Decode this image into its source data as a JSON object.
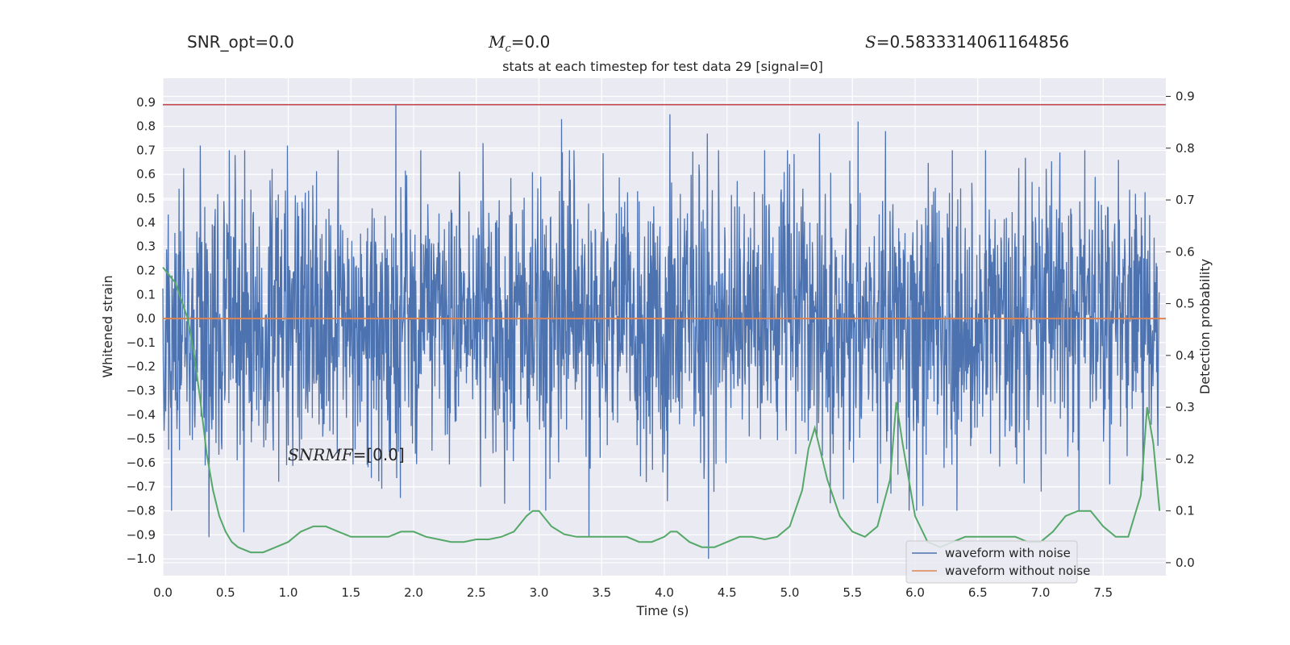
{
  "header": {
    "snr_opt": "SNR_opt=0.0",
    "mc_symbol": "M",
    "mc_sub": "c",
    "mc_value": "=0.0",
    "s_symbol": "S",
    "s_value": "=0.5833314061164856"
  },
  "annotation": {
    "snr_mf_symbol": "SNR",
    "snr_mf_sub": "MF",
    "snr_mf_value": "=[0.0]"
  },
  "colors": {
    "axes_bg": "#eaeaf2",
    "grid": "#ffffff",
    "noise_series": "#4c72b0",
    "clean_series": "#dd8452",
    "probability_series": "#55a868",
    "threshold_line": "#c44e52"
  },
  "chart_data": {
    "type": "line",
    "title": "stats at each timestep for test data 29 [signal=0]",
    "xlabel": "Time (s)",
    "ylabel": "Whitened strain",
    "y2label": "Detection probability",
    "xlim": [
      0.0,
      8.0
    ],
    "ylim": [
      -1.07,
      1.0
    ],
    "y2lim": [
      -0.025,
      0.935
    ],
    "xticks": [
      "0.0",
      "0.5",
      "1.0",
      "1.5",
      "2.0",
      "2.5",
      "3.0",
      "3.5",
      "4.0",
      "4.5",
      "5.0",
      "5.5",
      "6.0",
      "6.5",
      "7.0",
      "7.5"
    ],
    "yticks": [
      "0.9",
      "0.8",
      "0.7",
      "0.6",
      "0.5",
      "0.4",
      "0.3",
      "0.2",
      "0.1",
      "0.0",
      "−0.1",
      "−0.2",
      "−0.3",
      "−0.4",
      "−0.5",
      "−0.6",
      "−0.7",
      "−0.8",
      "−0.9",
      "−1.0"
    ],
    "y2ticks": [
      "0.9",
      "0.8",
      "0.7",
      "0.6",
      "0.5",
      "0.4",
      "0.3",
      "0.2",
      "0.1",
      "0.0"
    ],
    "grid": true,
    "legend": {
      "position": "lower-right",
      "entries": [
        "waveform with noise",
        "waveform without noise"
      ]
    },
    "series": [
      {
        "name": "waveform with noise",
        "axis": "left",
        "note": "dense noise trace sampled across 0–8 s",
        "amplitude_range": [
          -1.0,
          0.89
        ],
        "peaks_high": [
          [
            0.13,
            0.54
          ],
          [
            0.3,
            0.72
          ],
          [
            0.58,
            0.68
          ],
          [
            1.0,
            0.72
          ],
          [
            1.87,
            0.89
          ],
          [
            2.57,
            0.73
          ],
          [
            3.2,
            0.83
          ],
          [
            4.07,
            0.85
          ],
          [
            4.37,
            0.77
          ],
          [
            5.27,
            0.77
          ],
          [
            5.58,
            0.82
          ],
          [
            5.8,
            0.78
          ],
          [
            7.67,
            0.66
          ]
        ],
        "peaks_low": [
          [
            0.37,
            -0.91
          ],
          [
            0.65,
            -0.89
          ],
          [
            1.0,
            -0.72
          ],
          [
            2.55,
            -0.7
          ],
          [
            3.42,
            -0.91
          ],
          [
            4.05,
            -0.76
          ],
          [
            4.38,
            -1.0
          ],
          [
            5.9,
            -0.65
          ],
          [
            6.1,
            -0.78
          ],
          [
            7.05,
            -0.72
          ],
          [
            7.6,
            -0.69
          ]
        ]
      },
      {
        "name": "waveform without noise",
        "axis": "left",
        "x": [
          0.0,
          8.0
        ],
        "values": [
          0.0,
          0.0
        ]
      },
      {
        "name": "detection probability",
        "axis": "right",
        "x": [
          0.0,
          0.1,
          0.2,
          0.25,
          0.3,
          0.35,
          0.4,
          0.45,
          0.5,
          0.55,
          0.6,
          0.7,
          0.8,
          0.9,
          1.0,
          1.1,
          1.2,
          1.3,
          1.4,
          1.5,
          1.6,
          1.7,
          1.8,
          1.9,
          2.0,
          2.1,
          2.2,
          2.3,
          2.4,
          2.5,
          2.6,
          2.7,
          2.8,
          2.9,
          2.95,
          3.0,
          3.1,
          3.2,
          3.3,
          3.4,
          3.5,
          3.6,
          3.7,
          3.8,
          3.9,
          4.0,
          4.05,
          4.1,
          4.2,
          4.3,
          4.4,
          4.5,
          4.6,
          4.7,
          4.8,
          4.9,
          5.0,
          5.1,
          5.15,
          5.2,
          5.3,
          5.4,
          5.5,
          5.6,
          5.7,
          5.8,
          5.85,
          5.9,
          6.0,
          6.1,
          6.2,
          6.3,
          6.4,
          6.5,
          6.6,
          6.7,
          6.8,
          6.9,
          7.0,
          7.1,
          7.2,
          7.3,
          7.4,
          7.5,
          7.6,
          7.7,
          7.8,
          7.85,
          7.9,
          7.95
        ],
        "values": [
          0.57,
          0.54,
          0.47,
          0.4,
          0.31,
          0.21,
          0.14,
          0.09,
          0.06,
          0.04,
          0.03,
          0.02,
          0.02,
          0.03,
          0.04,
          0.06,
          0.07,
          0.07,
          0.06,
          0.05,
          0.05,
          0.05,
          0.05,
          0.06,
          0.06,
          0.05,
          0.045,
          0.04,
          0.04,
          0.045,
          0.045,
          0.05,
          0.06,
          0.09,
          0.1,
          0.1,
          0.07,
          0.055,
          0.05,
          0.05,
          0.05,
          0.05,
          0.05,
          0.04,
          0.04,
          0.05,
          0.06,
          0.06,
          0.04,
          0.03,
          0.03,
          0.04,
          0.05,
          0.05,
          0.045,
          0.05,
          0.07,
          0.14,
          0.22,
          0.26,
          0.16,
          0.09,
          0.06,
          0.05,
          0.07,
          0.16,
          0.31,
          0.23,
          0.09,
          0.04,
          0.03,
          0.04,
          0.05,
          0.05,
          0.05,
          0.05,
          0.05,
          0.04,
          0.04,
          0.06,
          0.09,
          0.1,
          0.1,
          0.07,
          0.05,
          0.05,
          0.13,
          0.3,
          0.23,
          0.1
        ]
      },
      {
        "name": "detection threshold",
        "axis": "left",
        "x": [
          0.0,
          8.0
        ],
        "values": [
          0.89,
          0.89
        ]
      }
    ]
  }
}
